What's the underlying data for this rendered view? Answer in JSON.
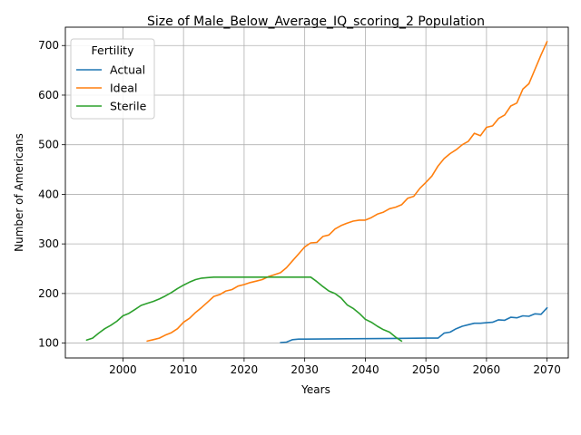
{
  "chart_data": {
    "type": "line",
    "title": "Size of Male_Below_Average_IQ_scoring_2 Population",
    "xlabel": "Years",
    "ylabel": "Number of Americans",
    "xlim": [
      1990.5,
      2073.5
    ],
    "ylim": [
      70,
      737
    ],
    "xticks": [
      2000,
      2010,
      2020,
      2030,
      2040,
      2050,
      2060,
      2070
    ],
    "yticks": [
      100,
      200,
      300,
      400,
      500,
      600,
      700
    ],
    "grid": true,
    "legend": {
      "title": "Fertility",
      "placement": "top-left"
    },
    "series": [
      {
        "name": "Actual",
        "color": "#1f77b4",
        "x": [
          2026,
          2027,
          2028,
          2029,
          2030,
          2035,
          2040,
          2045,
          2050,
          2052,
          2053,
          2054,
          2055,
          2056,
          2057,
          2058,
          2059,
          2060,
          2061,
          2062,
          2063,
          2064,
          2065,
          2066,
          2067,
          2068,
          2069,
          2070
        ],
        "y": [
          101,
          102,
          107,
          108,
          108,
          108.5,
          109,
          109.5,
          110,
          110,
          120,
          122,
          129,
          134,
          137,
          140,
          140,
          141,
          142,
          147,
          146,
          152,
          151,
          155,
          154,
          159,
          158,
          171
        ]
      },
      {
        "name": "Ideal",
        "color": "#ff7f0e",
        "x": [
          2004,
          2005,
          2006,
          2007,
          2008,
          2009,
          2010,
          2011,
          2012,
          2013,
          2014,
          2015,
          2016,
          2017,
          2018,
          2019,
          2020,
          2021,
          2022,
          2023,
          2024,
          2025,
          2026,
          2027,
          2028,
          2029,
          2030,
          2031,
          2032,
          2033,
          2034,
          2035,
          2036,
          2037,
          2038,
          2039,
          2040,
          2041,
          2042,
          2043,
          2044,
          2045,
          2046,
          2047,
          2048,
          2049,
          2050,
          2051,
          2052,
          2053,
          2054,
          2055,
          2056,
          2057,
          2058,
          2059,
          2060,
          2061,
          2062,
          2063,
          2064,
          2065,
          2066,
          2067,
          2068,
          2069,
          2070
        ],
        "y": [
          104,
          107,
          110,
          116,
          121,
          129,
          142,
          150,
          162,
          172,
          183,
          194,
          198,
          205,
          208,
          215,
          218,
          222,
          225,
          228,
          234,
          238,
          242,
          252,
          266,
          280,
          294,
          302,
          303,
          315,
          318,
          330,
          337,
          342,
          346,
          348,
          348,
          353,
          360,
          364,
          371,
          374,
          379,
          392,
          396,
          412,
          424,
          437,
          457,
          472,
          482,
          490,
          500,
          507,
          523,
          518,
          535,
          538,
          553,
          560,
          578,
          584,
          612,
          623,
          652,
          681,
          708
        ]
      },
      {
        "name": "Sterile",
        "color": "#2ca02c",
        "x": [
          1994,
          1995,
          1996,
          1997,
          1998,
          1999,
          2000,
          2001,
          2002,
          2003,
          2004,
          2005,
          2006,
          2007,
          2008,
          2009,
          2010,
          2011,
          2012,
          2013,
          2014,
          2015,
          2016,
          2020,
          2025,
          2030,
          2031,
          2032,
          2033,
          2034,
          2035,
          2036,
          2037,
          2038,
          2039,
          2040,
          2041,
          2042,
          2043,
          2044,
          2045,
          2046
        ],
        "y": [
          106,
          110,
          120,
          129,
          136,
          144,
          155,
          160,
          168,
          176,
          180,
          184,
          189,
          195,
          202,
          210,
          217,
          223,
          228,
          231,
          232,
          233,
          233,
          233,
          233,
          233,
          233,
          224,
          214,
          205,
          200,
          191,
          177,
          170,
          160,
          148,
          142,
          134,
          127,
          122,
          112,
          104
        ]
      }
    ]
  }
}
